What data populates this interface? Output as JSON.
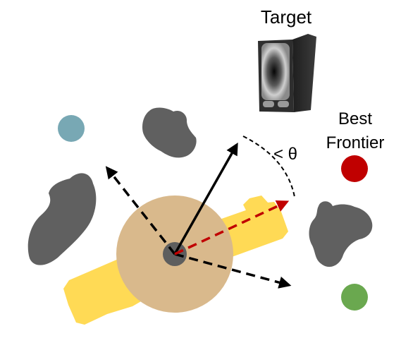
{
  "labels": {
    "target": "Target",
    "best_frontier_line1": "Best",
    "best_frontier_line2": "Frontier",
    "angle": "< θ"
  },
  "colors": {
    "obstacle": "#606060",
    "robot_base": "#D9B98C",
    "robot_center": "#5E5E5E",
    "track": "#FFDA55",
    "arrow_black": "#000000",
    "arrow_red": "#C00000",
    "frontier_best": "#C00000",
    "frontier_blue": "#78A8B4",
    "frontier_green": "#6AA84F",
    "target_body": "#2E2E2E"
  },
  "icons": {
    "target": "speaker-object-icon",
    "frontier_best": "red-dot-icon",
    "frontier_blue": "blue-dot-icon",
    "frontier_green": "green-dot-icon"
  }
}
